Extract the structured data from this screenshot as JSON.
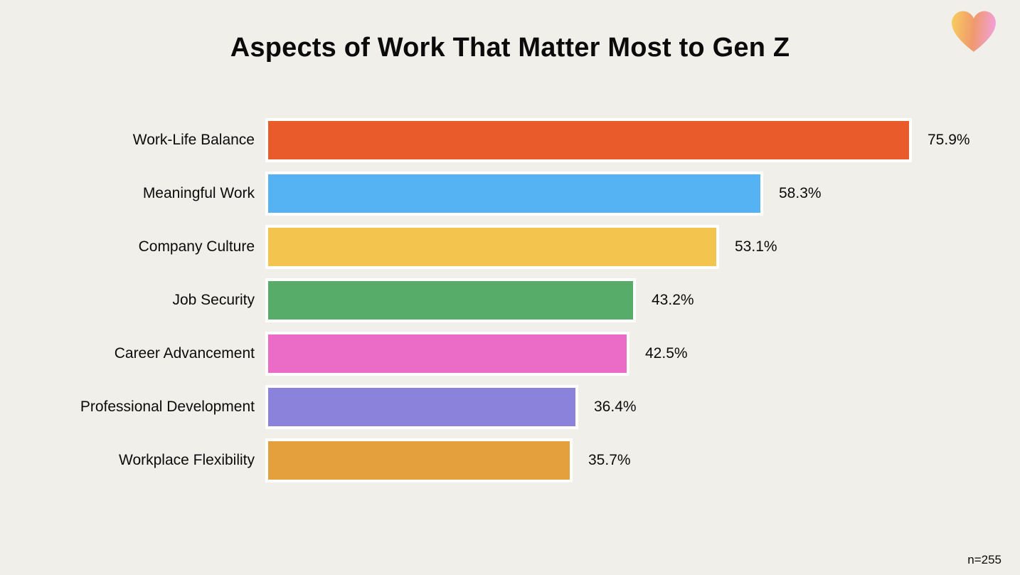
{
  "title": "Aspects of Work That Matter Most to Gen Z",
  "footnote": "n=255",
  "colors": {
    "background": "#F1EFE9",
    "bar_border": "#FFFFFF",
    "text": "#0B0B0B"
  },
  "icons": {
    "heart": {
      "name": "heart-icon",
      "gradient": [
        "#F8CB5E",
        "#F0996E",
        "#F2A0DC"
      ]
    }
  },
  "chart_data": {
    "type": "bar",
    "orientation": "horizontal",
    "title": "Aspects of Work That Matter Most to Gen Z",
    "xlabel": "",
    "ylabel": "",
    "xlim": [
      0,
      100
    ],
    "grid": false,
    "legend": false,
    "categories": [
      "Work-Life Balance",
      "Meaningful Work",
      "Company Culture",
      "Job Security",
      "Career Advancement",
      "Professional Development",
      "Workplace Flexibility"
    ],
    "values": [
      75.9,
      58.3,
      53.1,
      43.2,
      42.5,
      36.4,
      35.7
    ],
    "value_labels": [
      "75.9%",
      "58.3%",
      "53.1%",
      "43.2%",
      "42.5%",
      "36.4%",
      "35.7%"
    ],
    "bar_colors": [
      "#EA5B2B",
      "#55B2F3",
      "#F3C44E",
      "#56AC68",
      "#EB6CC7",
      "#8B82DB",
      "#E5A03E"
    ],
    "sample_size_note": "n=255"
  }
}
